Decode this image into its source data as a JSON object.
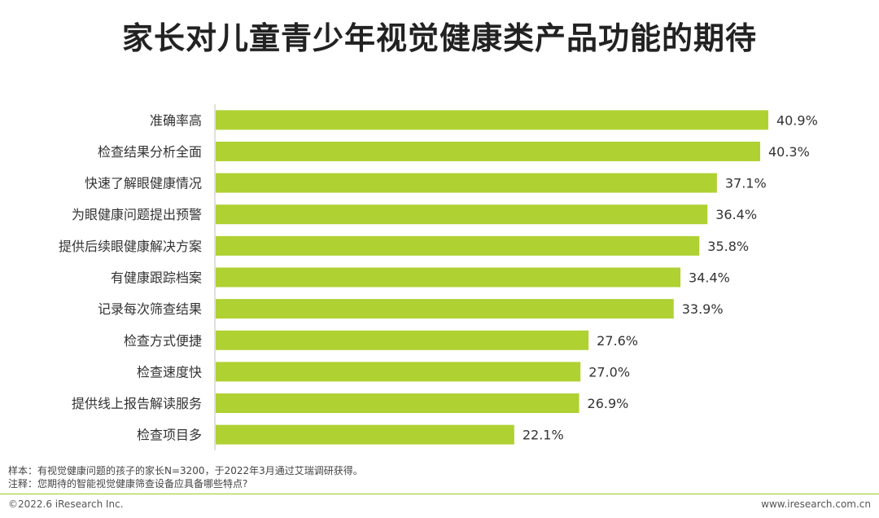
{
  "title": "家长对儿童青少年视觉健康类产品功能的期待",
  "chart_data": {
    "type": "bar",
    "orientation": "horizontal",
    "title": "家长对儿童青少年视觉健康类产品功能的期待",
    "categories": [
      "准确率高",
      "检查结果分析全面",
      "快速了解眼健康情况",
      "为眼健康问题提出预警",
      "提供后续眼健康解决方案",
      "有健康跟踪档案",
      "记录每次筛查结果",
      "检查方式便捷",
      "检查速度快",
      "提供线上报告解读服务",
      "检查项目多"
    ],
    "values": [
      40.9,
      40.3,
      37.1,
      36.4,
      35.8,
      34.4,
      33.9,
      27.6,
      27.0,
      26.9,
      22.1
    ],
    "value_labels": [
      "40.9%",
      "40.3%",
      "37.1%",
      "36.4%",
      "35.8%",
      "34.4%",
      "33.9%",
      "27.6%",
      "27.0%",
      "26.9%",
      "22.1%"
    ],
    "xlim": [
      0,
      45
    ],
    "bar_color": "#afd132",
    "xlabel": "",
    "ylabel": ""
  },
  "notes": {
    "sample": "样本：有视觉健康问题的孩子的家长N=3200，于2022年3月通过艾瑞调研获得。",
    "annotation": "注释：您期待的智能视觉健康筛查设备应具备哪些特点?"
  },
  "footer": {
    "copyright": "©2022.6 iResearch Inc.",
    "website": "www.iresearch.com.cn"
  }
}
